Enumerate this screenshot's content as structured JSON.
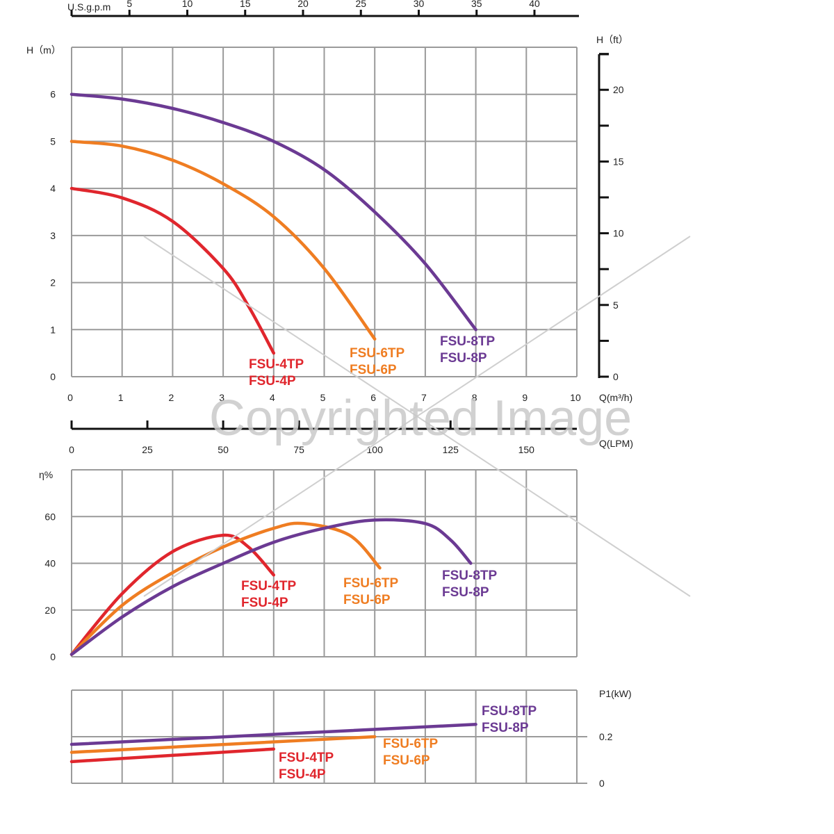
{
  "colors": {
    "red": "#e0262d",
    "orange": "#ef7d22",
    "purple": "#6b3a93",
    "grid": "#9a9a9a",
    "watermark": "#c9c9c9"
  },
  "watermark": "Copyrighted Image",
  "chart_data": [
    {
      "type": "line",
      "title": "",
      "ylabel": "H（m）",
      "xlabel": "Q(m³/h)",
      "xlim": [
        0,
        10
      ],
      "ylim": [
        0,
        7
      ],
      "x_ticks": [
        "0",
        "1",
        "2",
        "3",
        "4",
        "5",
        "6",
        "7",
        "8",
        "9",
        "10"
      ],
      "y_ticks": [
        "0",
        "1",
        "2",
        "3",
        "4",
        "5",
        "6"
      ],
      "grid": true,
      "secondary_y": {
        "label": "H（ft）",
        "ticks": [
          "0",
          "5",
          "10",
          "15",
          "20"
        ]
      },
      "top_axis": {
        "label": "U.S.g.p.m",
        "ticks": [
          "5",
          "10",
          "15",
          "20",
          "25",
          "30",
          "35",
          "40"
        ]
      },
      "bottom_axis": {
        "label": "Q(LPM)",
        "ticks": [
          "0",
          "25",
          "50",
          "75",
          "100",
          "125",
          "150"
        ]
      },
      "series": [
        {
          "name": "FSU-4TP / FSU-4P",
          "label_lines": [
            "FSU-4TP",
            "FSU-4P"
          ],
          "color": "red",
          "x": [
            0,
            1,
            2,
            3,
            3.5,
            4
          ],
          "y": [
            4.0,
            3.8,
            3.3,
            2.3,
            1.5,
            0.5
          ]
        },
        {
          "name": "FSU-6TP / FSU-6P",
          "label_lines": [
            "FSU-6TP",
            "FSU-6P"
          ],
          "color": "orange",
          "x": [
            0,
            1,
            2,
            3,
            4,
            5,
            6
          ],
          "y": [
            5.0,
            4.9,
            4.6,
            4.1,
            3.4,
            2.3,
            0.8
          ]
        },
        {
          "name": "FSU-8TP / FSU-8P",
          "label_lines": [
            "FSU-8TP",
            "FSU-8P"
          ],
          "color": "purple",
          "x": [
            0,
            1,
            2,
            3,
            4,
            5,
            6,
            7,
            8
          ],
          "y": [
            6.0,
            5.9,
            5.7,
            5.4,
            5.0,
            4.4,
            3.5,
            2.4,
            1.0
          ]
        }
      ]
    },
    {
      "type": "line",
      "title": "",
      "ylabel": "η%",
      "xlim": [
        0,
        10
      ],
      "ylim": [
        0,
        80
      ],
      "y_ticks": [
        "0",
        "20",
        "40",
        "60"
      ],
      "grid": true,
      "series": [
        {
          "name": "FSU-4TP / FSU-4P",
          "label_lines": [
            "FSU-4TP",
            "FSU-4P"
          ],
          "color": "red",
          "x": [
            0,
            1,
            2,
            3,
            3.5,
            4
          ],
          "y": [
            1,
            27,
            45,
            52,
            47,
            35
          ]
        },
        {
          "name": "FSU-6TP / FSU-6P",
          "label_lines": [
            "FSU-6TP",
            "FSU-6P"
          ],
          "color": "orange",
          "x": [
            0,
            1,
            2,
            3,
            4,
            4.6,
            5.5,
            6.1
          ],
          "y": [
            1,
            22,
            36,
            47,
            55,
            57,
            52,
            38
          ]
        },
        {
          "name": "FSU-8TP / FSU-8P",
          "label_lines": [
            "FSU-8TP",
            "FSU-8P"
          ],
          "color": "purple",
          "x": [
            0,
            1,
            2,
            3,
            4,
            5,
            6,
            7,
            7.5,
            7.9
          ],
          "y": [
            1,
            17,
            30,
            40,
            49,
            55,
            58.5,
            57,
            50,
            40
          ]
        }
      ]
    },
    {
      "type": "line",
      "title": "",
      "ylabel": "P1(kW)",
      "xlim": [
        0,
        10
      ],
      "ylim": [
        0,
        0.4
      ],
      "y_ticks": [
        "0",
        "0.2"
      ],
      "grid": true,
      "series": [
        {
          "name": "FSU-4TP / FSU-4P",
          "label_lines": [
            "FSU-4TP",
            "FSU-4P"
          ],
          "color": "red",
          "x": [
            0,
            4
          ],
          "y": [
            0.093,
            0.147
          ]
        },
        {
          "name": "FSU-6TP / FSU-6P",
          "label_lines": [
            "FSU-6TP",
            "FSU-6P"
          ],
          "color": "orange",
          "x": [
            0,
            6
          ],
          "y": [
            0.133,
            0.2
          ]
        },
        {
          "name": "FSU-8TP / FSU-8P",
          "label_lines": [
            "FSU-8TP",
            "FSU-8P"
          ],
          "color": "purple",
          "x": [
            0,
            8
          ],
          "y": [
            0.167,
            0.253
          ]
        }
      ]
    }
  ]
}
